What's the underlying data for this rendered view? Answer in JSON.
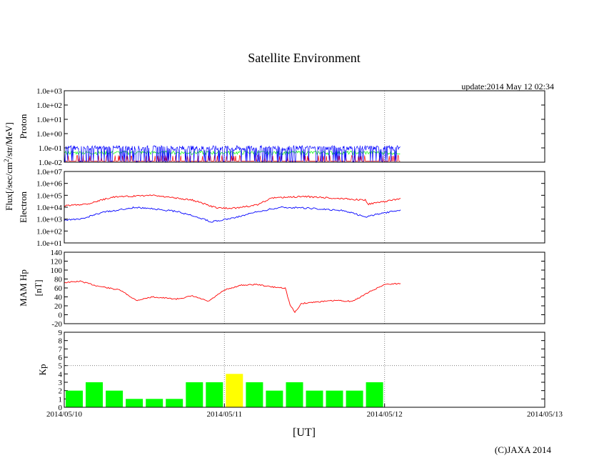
{
  "title": "Satellite Environment",
  "update_text": "update:2014 May 12 02:34",
  "xlabel": "[UT]",
  "copyright": "(C)JAXA 2014",
  "colors": {
    "red": "#ff0000",
    "blue": "#0000ff",
    "green": "#00ff00",
    "yellow": "#ffff00",
    "grid": "#808080"
  },
  "x_ticks": [
    "2014/05/10",
    "2014/05/11",
    "2014/05/12",
    "2014/05/13"
  ],
  "chart_data": [
    {
      "type": "line",
      "panel": "proton",
      "ylabel": "Proton",
      "shared_ylabel": "Flux[/sec/cm2/str/MeV]",
      "yscale": "log",
      "ylim": [
        0.01,
        1000
      ],
      "y_ticks": [
        "1.0e+03",
        "1.0e+02",
        "1.0e+01",
        "1.0e+00",
        "1.0e-01",
        "1.0e-02"
      ],
      "x_range_days": [
        0,
        3
      ],
      "data_end_day": 2.1,
      "series": [
        {
          "name": "proton-blue",
          "color": "#0000ff",
          "typical": 0.06,
          "low": 0.01,
          "high": 0.15
        },
        {
          "name": "proton-green",
          "color": "#00ff00",
          "typical": 0.045,
          "low": 0.03,
          "high": 0.07
        },
        {
          "name": "proton-red",
          "color": "#ff0000",
          "typical": 0.012,
          "low": 0.01,
          "high": 0.03
        }
      ]
    },
    {
      "type": "line",
      "panel": "electron",
      "ylabel": "Electron",
      "yscale": "log",
      "ylim": [
        10,
        10000000
      ],
      "y_ticks": [
        "1.0e+07",
        "1.0e+06",
        "1.0e+05",
        "1.0e+04",
        "1.0e+03",
        "1.0e+02",
        "1.0e+01"
      ],
      "series": [
        {
          "name": "electron-red",
          "color": "#ff0000",
          "x": [
            0,
            0.15,
            0.3,
            0.55,
            0.8,
            0.95,
            1.05,
            1.2,
            1.3,
            1.5,
            1.75,
            1.88,
            1.9,
            2.0,
            2.1
          ],
          "y": [
            13000,
            20000,
            70000,
            100000,
            40000,
            9000,
            8000,
            15000,
            60000,
            80000,
            50000,
            40000,
            18000,
            30000,
            55000
          ]
        },
        {
          "name": "electron-blue",
          "color": "#0000ff",
          "x": [
            0,
            0.1,
            0.25,
            0.45,
            0.7,
            0.85,
            0.92,
            1.05,
            1.2,
            1.35,
            1.55,
            1.75,
            1.88,
            1.95,
            2.1
          ],
          "y": [
            800,
            1000,
            4000,
            10000,
            4500,
            1200,
            600,
            1200,
            4000,
            10000,
            8000,
            5000,
            1500,
            2500,
            6000
          ]
        }
      ]
    },
    {
      "type": "line",
      "panel": "mam-hp",
      "ylabel": "MAM Hp",
      "ylabel2": "[nT]",
      "ylim": [
        -20,
        140
      ],
      "y_ticks": [
        "140",
        "120",
        "100",
        "80",
        "60",
        "40",
        "20",
        "0",
        "-20"
      ],
      "series": [
        {
          "name": "mam-hp",
          "color": "#ff0000",
          "x": [
            0,
            0.1,
            0.2,
            0.35,
            0.45,
            0.55,
            0.7,
            0.8,
            0.9,
            1.0,
            1.1,
            1.2,
            1.3,
            1.38,
            1.41,
            1.44,
            1.48,
            1.55,
            1.7,
            1.8,
            1.9,
            2.0,
            2.1
          ],
          "y": [
            72,
            75,
            65,
            55,
            32,
            40,
            35,
            42,
            30,
            55,
            66,
            68,
            62,
            60,
            22,
            5,
            25,
            28,
            32,
            30,
            50,
            68,
            70
          ]
        }
      ]
    },
    {
      "type": "bar",
      "panel": "kp",
      "ylabel": "Kp",
      "ylim": [
        0,
        9
      ],
      "y_ticks": [
        "9",
        "8",
        "7",
        "6",
        "5",
        "4",
        "3",
        "2",
        "1",
        "0"
      ],
      "bar_width_hours": 3,
      "values": [
        2,
        3,
        2,
        1,
        1,
        1,
        3,
        3,
        4,
        3,
        2,
        3,
        2,
        2,
        2,
        3
      ],
      "highlight_threshold": 4,
      "colors": {
        "normal": "#00ff00",
        "high": "#ffff00"
      }
    }
  ]
}
